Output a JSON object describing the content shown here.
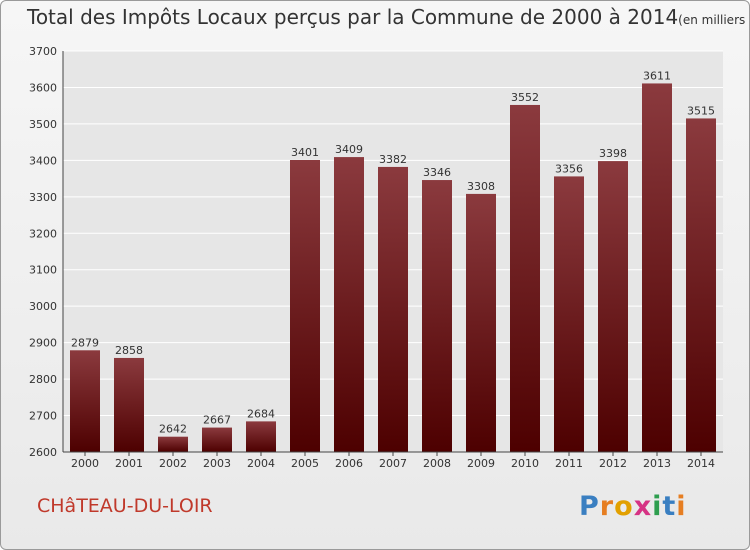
{
  "chart_data": {
    "type": "bar",
    "title": "Total des Impôts Locaux perçus par la Commune de 2000 à 2014",
    "unit_label": "(en milliers d'€)",
    "xlabel": "",
    "ylabel": "",
    "categories": [
      "2000",
      "2001",
      "2002",
      "2003",
      "2004",
      "2005",
      "2006",
      "2007",
      "2008",
      "2009",
      "2010",
      "2011",
      "2012",
      "2013",
      "2014"
    ],
    "values": [
      2879,
      2858,
      2642,
      2667,
      2684,
      3401,
      3409,
      3382,
      3346,
      3308,
      3552,
      3356,
      3398,
      3611,
      3515
    ],
    "ylim": [
      2600,
      3700
    ],
    "yticks": [
      2600,
      2700,
      2800,
      2900,
      3000,
      3100,
      3200,
      3300,
      3400,
      3500,
      3600,
      3700
    ],
    "grid": true,
    "bar_color_top": "#8b3a3e",
    "bar_color_bottom": "#4d0000"
  },
  "commune_name": "CHâTEAU-DU-LOIR",
  "logo": {
    "letters": [
      "P",
      "r",
      "o",
      "x",
      "i",
      "t",
      "i"
    ],
    "colors": [
      "#3a7fc1",
      "#e67e22",
      "#e2a000",
      "#d63384",
      "#2e9e4f",
      "#3a7fc1",
      "#e67e22"
    ]
  },
  "colors": {
    "commune_text": "#c0392b",
    "grid": "#ffffff",
    "axis": "#444444"
  }
}
